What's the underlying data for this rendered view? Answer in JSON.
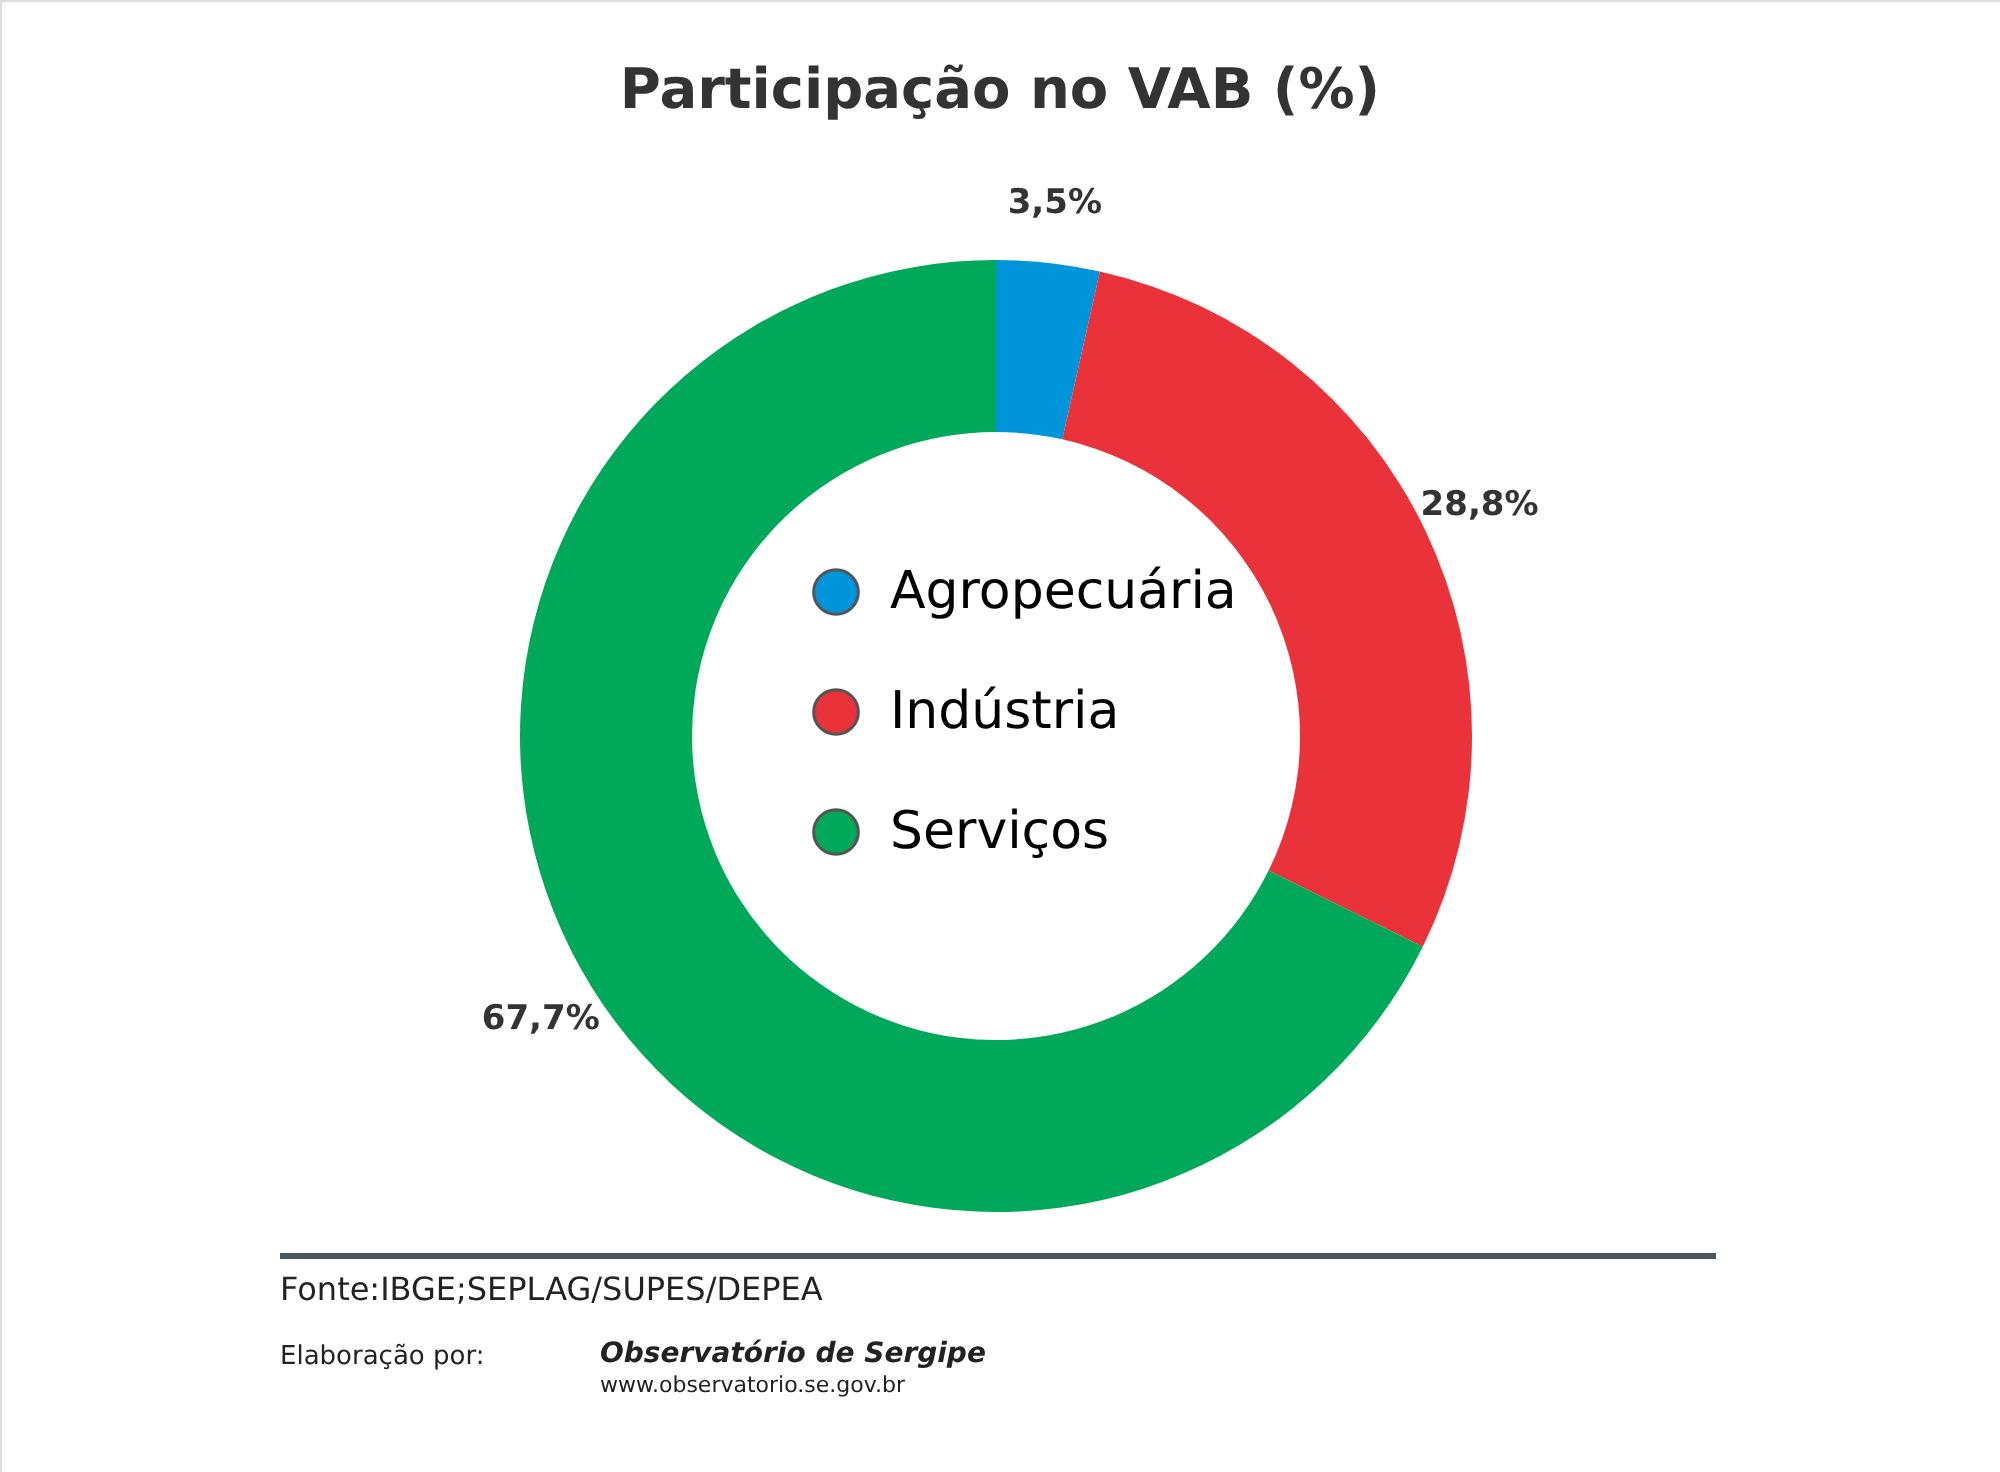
{
  "chart_data": {
    "type": "donut",
    "title": "Participação no VAB (%)",
    "categories": [
      "Agropecuária",
      "Indústria",
      "Serviços"
    ],
    "values": [
      3.5,
      28.8,
      67.7
    ],
    "colors": [
      "#0095da",
      "#e9323a",
      "#00a859"
    ],
    "value_labels": [
      "3,5%",
      "28,8%",
      "67,7%"
    ],
    "legend": "center",
    "annotations": [
      "Fonte:IBGE;SEPLAG/SUPES/DEPEA",
      "Elaboração por:",
      "Observatório de Sergipe",
      "www.observatorio.se.gov.br"
    ]
  }
}
